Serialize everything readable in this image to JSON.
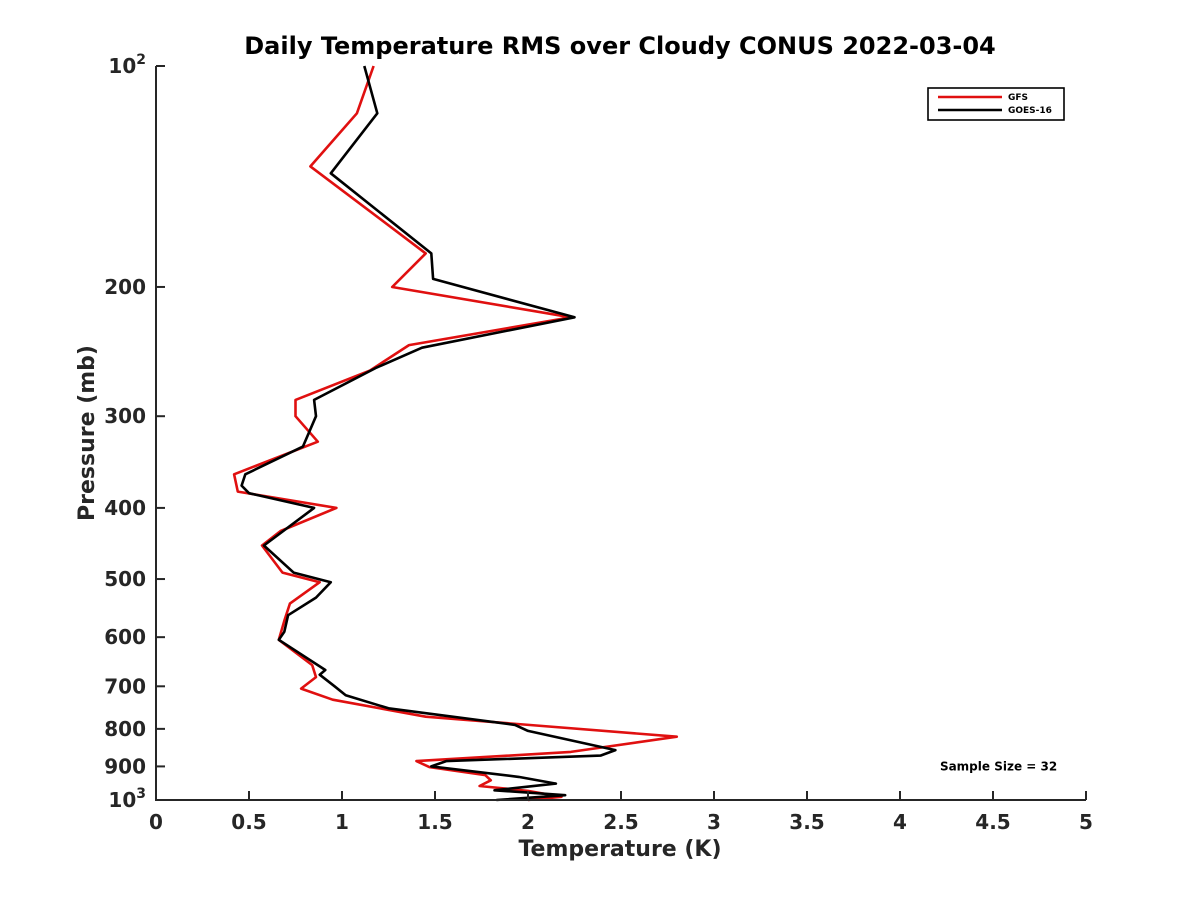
{
  "chart_data": {
    "type": "line",
    "title": "Daily Temperature RMS over Cloudy CONUS 2022-03-04",
    "xlabel": "Temperature (K)",
    "ylabel": "Pressure (mb)",
    "xlim": [
      0,
      5
    ],
    "ylim": [
      100,
      1000
    ],
    "y_scale": "log",
    "y_reversed": true,
    "grid": false,
    "legend_position": "top-right",
    "x_ticks": [
      {
        "value": 0,
        "label": "0"
      },
      {
        "value": 0.5,
        "label": "0.5"
      },
      {
        "value": 1,
        "label": "1"
      },
      {
        "value": 1.5,
        "label": "1.5"
      },
      {
        "value": 2,
        "label": "2"
      },
      {
        "value": 2.5,
        "label": "2.5"
      },
      {
        "value": 3,
        "label": "3"
      },
      {
        "value": 3.5,
        "label": "3.5"
      },
      {
        "value": 4,
        "label": "4"
      },
      {
        "value": 4.5,
        "label": "4.5"
      },
      {
        "value": 5,
        "label": "5"
      }
    ],
    "y_ticks": [
      {
        "value": 100,
        "base": "10",
        "exp": "2"
      },
      {
        "value": 200,
        "label": "200"
      },
      {
        "value": 300,
        "label": "300"
      },
      {
        "value": 400,
        "label": "400"
      },
      {
        "value": 500,
        "label": "500"
      },
      {
        "value": 600,
        "label": "600"
      },
      {
        "value": 700,
        "label": "700"
      },
      {
        "value": 800,
        "label": "800"
      },
      {
        "value": 900,
        "label": "900"
      },
      {
        "value": 1000,
        "base": "10",
        "exp": "3"
      }
    ],
    "series": [
      {
        "name": "GFS",
        "color": "#e01010",
        "points": [
          [
            1.17,
            100
          ],
          [
            1.08,
            116
          ],
          [
            0.83,
            137
          ],
          [
            1.45,
            180
          ],
          [
            1.27,
            200
          ],
          [
            2.23,
            220
          ],
          [
            1.36,
            240
          ],
          [
            1.15,
            260
          ],
          [
            0.75,
            285
          ],
          [
            0.75,
            300
          ],
          [
            0.87,
            325
          ],
          [
            0.42,
            360
          ],
          [
            0.44,
            380
          ],
          [
            0.97,
            400
          ],
          [
            0.67,
            430
          ],
          [
            0.57,
            450
          ],
          [
            0.68,
            490
          ],
          [
            0.88,
            505
          ],
          [
            0.72,
            540
          ],
          [
            0.69,
            570
          ],
          [
            0.66,
            605
          ],
          [
            0.84,
            655
          ],
          [
            0.86,
            680
          ],
          [
            0.78,
            705
          ],
          [
            0.95,
            730
          ],
          [
            1.45,
            770
          ],
          [
            2.8,
            820
          ],
          [
            2.23,
            860
          ],
          [
            1.4,
            885
          ],
          [
            1.47,
            902
          ],
          [
            1.77,
            925
          ],
          [
            1.8,
            940
          ],
          [
            1.74,
            957
          ],
          [
            2.0,
            972
          ],
          [
            2.18,
            990
          ],
          [
            2.0,
            1000
          ]
        ]
      },
      {
        "name": "GOES-16",
        "color": "#000000",
        "points": [
          [
            1.12,
            100
          ],
          [
            1.19,
            116
          ],
          [
            0.94,
            140
          ],
          [
            1.48,
            180
          ],
          [
            1.49,
            195
          ],
          [
            2.25,
            220
          ],
          [
            1.43,
            242
          ],
          [
            1.18,
            258
          ],
          [
            0.85,
            285
          ],
          [
            0.86,
            300
          ],
          [
            0.79,
            330
          ],
          [
            0.48,
            360
          ],
          [
            0.46,
            373
          ],
          [
            0.5,
            382
          ],
          [
            0.85,
            400
          ],
          [
            0.58,
            450
          ],
          [
            0.74,
            490
          ],
          [
            0.94,
            505
          ],
          [
            0.86,
            530
          ],
          [
            0.71,
            560
          ],
          [
            0.69,
            590
          ],
          [
            0.66,
            605
          ],
          [
            0.91,
            665
          ],
          [
            0.88,
            675
          ],
          [
            0.96,
            700
          ],
          [
            1.02,
            720
          ],
          [
            1.25,
            750
          ],
          [
            1.93,
            790
          ],
          [
            2.0,
            805
          ],
          [
            2.47,
            855
          ],
          [
            2.39,
            870
          ],
          [
            1.56,
            885
          ],
          [
            1.48,
            900
          ],
          [
            1.95,
            930
          ],
          [
            2.15,
            950
          ],
          [
            1.82,
            970
          ],
          [
            2.2,
            985
          ],
          [
            1.83,
            1000
          ]
        ]
      }
    ],
    "legend": [
      {
        "label": "GFS",
        "color": "#e01010"
      },
      {
        "label": "GOES-16",
        "color": "#000000"
      }
    ],
    "annotations": [
      {
        "text": "Sample Size = 32",
        "x": 4.53,
        "y": 900
      }
    ]
  }
}
